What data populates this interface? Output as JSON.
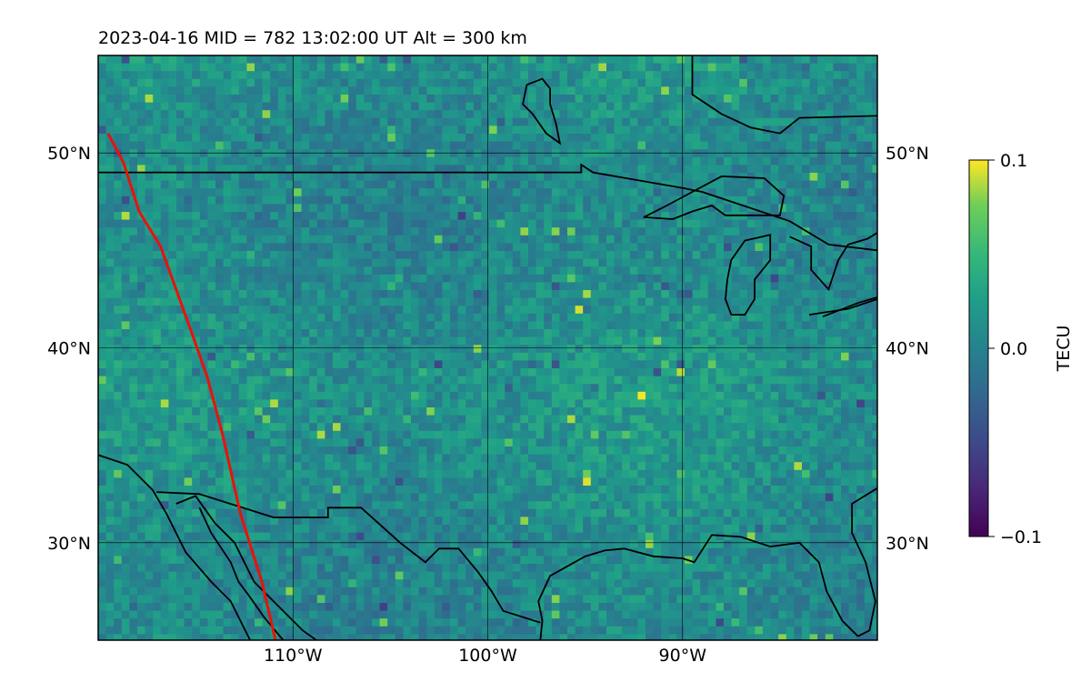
{
  "title": "2023-04-16  MID = 782    13:02:00  UT  Alt = 300 km",
  "map": {
    "lon_range": [
      -120,
      -80
    ],
    "lat_range": [
      25,
      55
    ],
    "lon_ticks": [
      {
        "value": -110,
        "label": "110°W"
      },
      {
        "value": -100,
        "label": "100°W"
      },
      {
        "value": -90,
        "label": "90°W"
      }
    ],
    "lat_ticks": [
      {
        "value": 50,
        "label": "50°N"
      },
      {
        "value": 40,
        "label": "40°N"
      },
      {
        "value": 30,
        "label": "30°N"
      }
    ],
    "track_color": "#e8120c",
    "track": [
      [
        -119.5,
        51.0
      ],
      [
        -118.7,
        49.5
      ],
      [
        -117.9,
        47.0
      ],
      [
        -116.8,
        45.2
      ],
      [
        -116.0,
        43.0
      ],
      [
        -115.1,
        40.5
      ],
      [
        -114.4,
        38.5
      ],
      [
        -113.6,
        35.5
      ],
      [
        -112.7,
        31.5
      ],
      [
        -111.6,
        28.0
      ],
      [
        -110.9,
        25.0
      ]
    ],
    "coastlines": [
      [
        [
          -120,
          34.5
        ],
        [
          -118.5,
          34.0
        ],
        [
          -117.2,
          32.7
        ],
        [
          -116.5,
          31.5
        ],
        [
          -115.5,
          29.5
        ],
        [
          -114.2,
          28.0
        ],
        [
          -113.2,
          27.0
        ],
        [
          -112.2,
          25.0
        ]
      ],
      [
        [
          -114.8,
          31.8
        ],
        [
          -114.2,
          30.5
        ],
        [
          -113.2,
          29.0
        ],
        [
          -112.8,
          28.0
        ],
        [
          -112.2,
          27.2
        ],
        [
          -111.5,
          26.2
        ],
        [
          -110.5,
          25.0
        ]
      ],
      [
        [
          -116.0,
          32.0
        ],
        [
          -115.0,
          32.4
        ],
        [
          -114.0,
          31.0
        ],
        [
          -113.0,
          30.0
        ],
        [
          -112.5,
          29.0
        ],
        [
          -112.0,
          28.0
        ],
        [
          -110.5,
          26.5
        ],
        [
          -109.5,
          25.5
        ],
        [
          -108.8,
          25.0
        ]
      ],
      [
        [
          -117.0,
          32.6
        ],
        [
          -114.8,
          32.5
        ],
        [
          -111.0,
          31.3
        ],
        [
          -108.2,
          31.3
        ],
        [
          -108.2,
          31.8
        ],
        [
          -106.5,
          31.8
        ],
        [
          -104.5,
          30.0
        ],
        [
          -103.2,
          29.0
        ],
        [
          -102.5,
          29.7
        ],
        [
          -101.5,
          29.7
        ],
        [
          -100.5,
          28.5
        ],
        [
          -99.8,
          27.5
        ],
        [
          -99.2,
          26.5
        ],
        [
          -97.3,
          25.9
        ]
      ],
      [
        [
          -97.3,
          25.0
        ],
        [
          -97.2,
          26.0
        ],
        [
          -97.4,
          27.0
        ],
        [
          -96.8,
          28.3
        ],
        [
          -95.0,
          29.3
        ],
        [
          -94.0,
          29.6
        ],
        [
          -93.0,
          29.7
        ],
        [
          -91.5,
          29.3
        ],
        [
          -90.0,
          29.2
        ],
        [
          -89.4,
          29.0
        ],
        [
          -88.5,
          30.4
        ],
        [
          -87.0,
          30.3
        ],
        [
          -85.5,
          29.8
        ],
        [
          -84.0,
          30.0
        ],
        [
          -83.0,
          29.0
        ],
        [
          -82.6,
          27.5
        ],
        [
          -81.8,
          26.0
        ],
        [
          -81.0,
          25.2
        ]
      ],
      [
        [
          -81.0,
          25.2
        ],
        [
          -80.4,
          25.5
        ],
        [
          -80.1,
          27.0
        ],
        [
          -80.6,
          29.0
        ],
        [
          -81.3,
          30.5
        ],
        [
          -81.3,
          32.0
        ],
        [
          -80.0,
          32.8
        ]
      ],
      [
        [
          -120,
          49.0
        ],
        [
          -95.2,
          49.0
        ],
        [
          -95.2,
          49.4
        ],
        [
          -94.6,
          49.0
        ],
        [
          -90.0,
          48.2
        ],
        [
          -89.0,
          48.0
        ],
        [
          -84.5,
          46.5
        ],
        [
          -82.5,
          45.3
        ],
        [
          -80,
          45.0
        ]
      ],
      [
        [
          -92.0,
          46.7
        ],
        [
          -90.5,
          46.6
        ],
        [
          -89.5,
          47.0
        ],
        [
          -88.5,
          47.3
        ],
        [
          -87.8,
          46.8
        ],
        [
          -85.0,
          46.8
        ],
        [
          -84.8,
          47.8
        ],
        [
          -85.8,
          48.7
        ],
        [
          -88.0,
          48.8
        ],
        [
          -89.5,
          48.0
        ],
        [
          -90.8,
          47.3
        ],
        [
          -92.0,
          46.7
        ]
      ],
      [
        [
          -87.5,
          41.7
        ],
        [
          -87.8,
          42.5
        ],
        [
          -87.7,
          43.5
        ],
        [
          -87.5,
          44.5
        ],
        [
          -86.8,
          45.5
        ],
        [
          -85.5,
          45.8
        ],
        [
          -85.5,
          44.5
        ],
        [
          -86.3,
          43.5
        ],
        [
          -86.3,
          42.5
        ],
        [
          -86.8,
          41.7
        ],
        [
          -87.5,
          41.7
        ]
      ],
      [
        [
          -84.5,
          45.7
        ],
        [
          -83.4,
          45.2
        ],
        [
          -83.4,
          44.0
        ],
        [
          -82.5,
          43.0
        ],
        [
          -82.0,
          44.5
        ],
        [
          -81.5,
          45.3
        ],
        [
          -80.5,
          45.6
        ],
        [
          -80,
          45.9
        ]
      ],
      [
        [
          -83.5,
          41.7
        ],
        [
          -81.5,
          42.0
        ],
        [
          -80,
          42.5
        ]
      ],
      [
        [
          -82.8,
          41.6
        ],
        [
          -81.0,
          42.3
        ],
        [
          -80,
          42.6
        ]
      ],
      [
        [
          -89.5,
          55.0
        ],
        [
          -89.5,
          53.0
        ],
        [
          -88.0,
          52.0
        ],
        [
          -86.5,
          51.3
        ],
        [
          -85.0,
          51.0
        ],
        [
          -84.0,
          51.8
        ],
        [
          -80,
          51.9
        ]
      ],
      [
        [
          -98.0,
          53.5
        ],
        [
          -97.2,
          53.8
        ],
        [
          -96.8,
          53.3
        ],
        [
          -96.8,
          52.5
        ],
        [
          -96.5,
          51.5
        ],
        [
          -96.3,
          50.5
        ],
        [
          -97.0,
          51.0
        ],
        [
          -97.7,
          52.0
        ],
        [
          -98.2,
          52.5
        ],
        [
          -98.0,
          53.5
        ]
      ]
    ]
  },
  "colorbar": {
    "label": "TECU",
    "ticks": [
      {
        "value": 0.1,
        "label": "0.1"
      },
      {
        "value": 0.0,
        "label": "0.0"
      },
      {
        "value": -0.1,
        "label": "−0.1"
      }
    ],
    "colormap": "viridis"
  }
}
